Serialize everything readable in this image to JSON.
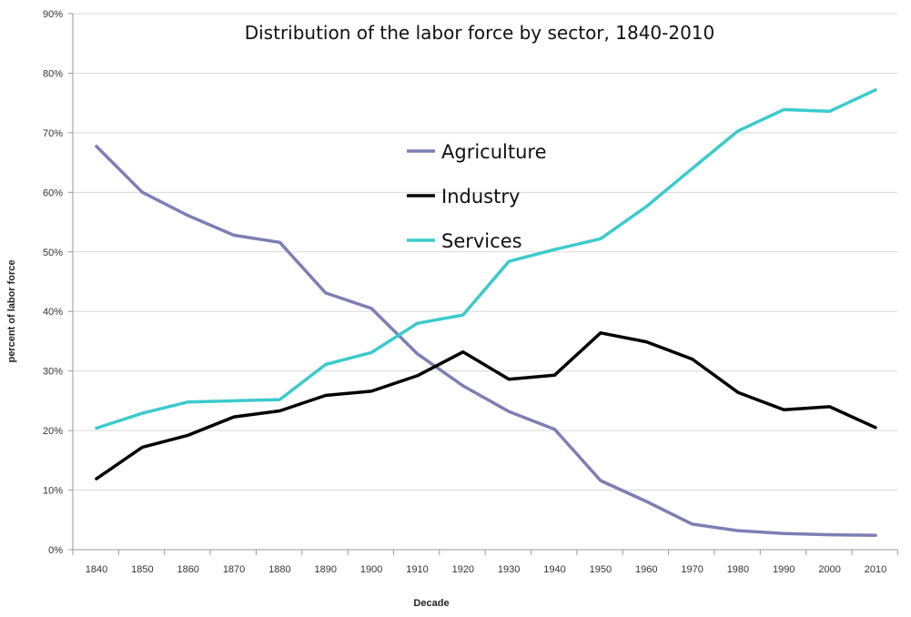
{
  "chart_data": {
    "type": "line",
    "title": "Distribution of the labor force by sector, 1840-2010",
    "xlabel": "Decade",
    "ylabel": "percent of labor force",
    "x": [
      1840,
      1850,
      1860,
      1870,
      1880,
      1890,
      1900,
      1910,
      1920,
      1930,
      1940,
      1950,
      1960,
      1970,
      1980,
      1990,
      2000,
      2010
    ],
    "ylim": [
      0,
      90
    ],
    "yticks": [
      "0%",
      "10%",
      "20%",
      "30%",
      "40%",
      "50%",
      "60%",
      "70%",
      "80%",
      "90%"
    ],
    "grid": true,
    "legend_position": "center-top",
    "series": [
      {
        "name": "Agriculture",
        "color": "#7d7fb4",
        "values": [
          67.7,
          60.0,
          56.1,
          52.8,
          51.6,
          43.1,
          40.5,
          32.9,
          27.5,
          23.2,
          20.2,
          11.6,
          8.1,
          4.3,
          3.2,
          2.7,
          2.5,
          2.4
        ]
      },
      {
        "name": "Industry",
        "color": "#000000",
        "values": [
          11.9,
          17.2,
          19.2,
          22.3,
          23.3,
          25.9,
          26.6,
          29.2,
          33.2,
          28.6,
          29.3,
          36.4,
          34.9,
          32.0,
          26.4,
          23.5,
          24.0,
          20.5
        ]
      },
      {
        "name": "Services",
        "color": "#3ccacc",
        "values": [
          20.4,
          22.9,
          24.8,
          25.0,
          25.2,
          31.1,
          33.1,
          38.0,
          39.4,
          48.4,
          50.4,
          52.2,
          57.6,
          64.0,
          70.3,
          73.9,
          73.6,
          77.2
        ]
      }
    ]
  }
}
